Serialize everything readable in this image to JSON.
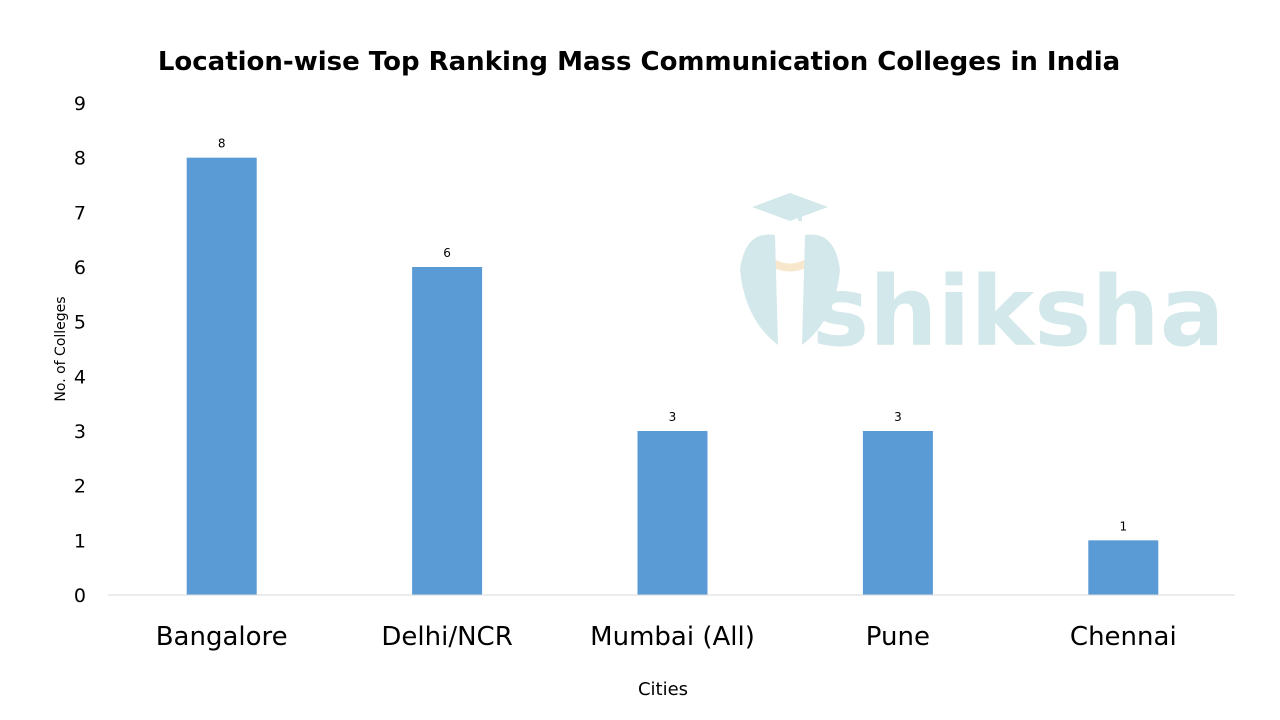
{
  "chart_data": {
    "type": "bar",
    "title": "Location-wise Top Ranking Mass Communication Colleges in India",
    "categories": [
      "Bangalore",
      "Delhi/NCR",
      "Mumbai (All)",
      "Pune",
      "Chennai"
    ],
    "values": [
      8,
      6,
      3,
      3,
      1
    ],
    "data_labels": [
      "8",
      "6",
      "3",
      "3",
      "1"
    ],
    "xlabel": "Cities",
    "ylabel": "No. of Colleges",
    "ylim": [
      0,
      9
    ],
    "yticks": [
      "0",
      "1",
      "2",
      "3",
      "4",
      "5",
      "6",
      "7",
      "8",
      "9"
    ],
    "grid": false,
    "bar_color": "#5b9bd5"
  },
  "watermark": {
    "text": "shiksha"
  }
}
